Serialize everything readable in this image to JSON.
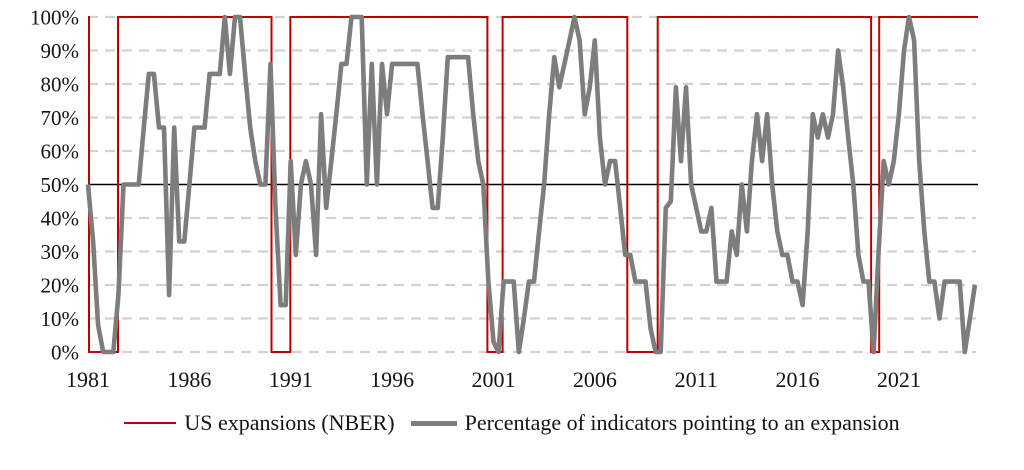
{
  "chart_data": {
    "type": "line",
    "title": "",
    "legend_position": "bottom",
    "background_color": "#ffffff",
    "x_axis": {
      "range_years": [
        1981,
        2025
      ],
      "ticks": [
        {
          "year": 1981,
          "label": "1981"
        },
        {
          "year": 1986,
          "label": "1986"
        },
        {
          "year": 1991,
          "label": "1991"
        },
        {
          "year": 1996,
          "label": "1996"
        },
        {
          "year": 2001,
          "label": "2001"
        },
        {
          "year": 2006,
          "label": "2006"
        },
        {
          "year": 2011,
          "label": "2011"
        },
        {
          "year": 2016,
          "label": "2016"
        },
        {
          "year": 2021,
          "label": "2021"
        }
      ]
    },
    "y_axis": {
      "range_percent": [
        0,
        100
      ],
      "tick_step": 10,
      "gridline_style": "dashed",
      "gridline_color": "#d2d2d2",
      "reference_line_value": 50,
      "reference_line_color": "#000000",
      "ticks": [
        {
          "value": 0,
          "label": "0%"
        },
        {
          "value": 10,
          "label": "10%"
        },
        {
          "value": 20,
          "label": "20%"
        },
        {
          "value": 30,
          "label": "30%"
        },
        {
          "value": 40,
          "label": "40%"
        },
        {
          "value": 50,
          "label": "50%"
        },
        {
          "value": 60,
          "label": "60%"
        },
        {
          "value": 70,
          "label": "70%"
        },
        {
          "value": 80,
          "label": "80%"
        },
        {
          "value": 90,
          "label": "90%"
        },
        {
          "value": 100,
          "label": "100%"
        }
      ]
    },
    "series": [
      {
        "id": "us_expansions",
        "name": "US expansions (NBER)",
        "type": "step",
        "color": "#c00000",
        "stroke_width": 2,
        "expansion_value": 100,
        "recession_value": 0,
        "start_year": 1981.0,
        "end_year": 2024.9,
        "recession_periods": [
          [
            1981.05,
            1982.48
          ],
          [
            1990.05,
            1990.98
          ],
          [
            2000.7,
            2001.45
          ],
          [
            2007.6,
            2009.1
          ],
          [
            2019.63,
            2020.03
          ]
        ]
      },
      {
        "id": "indicator_percentage",
        "name": "Percentage of indicators pointing to an expansion",
        "type": "line",
        "color": "#7d7d7d",
        "stroke_width": 4.6,
        "start_year": 1981.0,
        "step_years": 0.25,
        "values_percent": [
          50,
          33,
          8,
          0,
          0,
          0,
          17,
          50,
          50,
          50,
          50,
          67,
          83,
          83,
          67,
          67,
          17,
          67,
          33,
          33,
          50,
          67,
          67,
          67,
          83,
          83,
          83,
          100,
          83,
          100,
          100,
          83,
          67,
          57,
          50,
          50,
          86,
          43,
          14,
          14,
          57,
          29,
          50,
          57,
          50,
          29,
          71,
          43,
          57,
          71,
          86,
          86,
          100,
          100,
          100,
          50,
          86,
          50,
          86,
          71,
          86,
          86,
          86,
          86,
          86,
          86,
          71,
          57,
          43,
          43,
          64,
          88,
          88,
          88,
          88,
          88,
          71,
          57,
          50,
          21,
          3,
          0,
          21,
          21,
          21,
          0,
          10,
          21,
          21,
          36,
          50,
          71,
          88,
          79,
          86,
          93,
          100,
          93,
          71,
          79,
          93,
          64,
          50,
          57,
          57,
          43,
          29,
          29,
          21,
          21,
          21,
          7,
          0,
          0,
          43,
          45,
          79,
          57,
          79,
          50,
          43,
          36,
          36,
          43,
          21,
          21,
          21,
          36,
          29,
          50,
          36,
          57,
          71,
          57,
          71,
          50,
          36,
          29,
          29,
          21,
          21,
          14,
          36,
          71,
          64,
          71,
          64,
          71,
          90,
          79,
          64,
          50,
          29,
          21,
          21,
          0,
          30,
          57,
          50,
          57,
          71,
          90,
          100,
          93,
          57,
          36,
          21,
          21,
          10,
          21,
          21,
          21,
          21,
          0,
          10,
          20
        ]
      },
      {
        "id": "fifty_percent_line",
        "name": "50% reference line",
        "type": "constant",
        "color": "#000000",
        "stroke_width": 1.5,
        "start_year": 1981.0,
        "end_year": 2024.9,
        "constant_value": 50
      }
    ]
  },
  "legend": {
    "items": [
      {
        "id": "us_expansions",
        "label": "US expansions (NBER)",
        "swatch_color": "#c00000",
        "swatch_style": "thin"
      },
      {
        "id": "indicator_percentage",
        "label": "Percentage of indicators pointing to an expansion",
        "swatch_color": "#7d7d7d",
        "swatch_style": "thick"
      }
    ]
  }
}
